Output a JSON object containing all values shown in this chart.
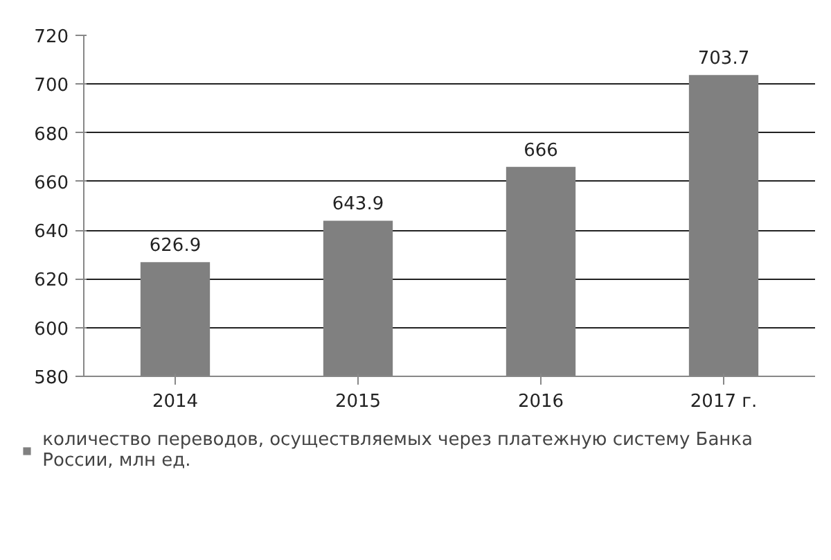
{
  "chart_data": {
    "type": "bar",
    "categories": [
      "2014",
      "2015",
      "2016",
      "2017 г."
    ],
    "series": [
      {
        "name": "количество переводов, осуществляемых через платежную систему Банка России, млн ед.",
        "color": "#808080",
        "values": [
          626.9,
          643.9,
          666,
          703.7
        ]
      }
    ],
    "ylim": [
      580,
      720
    ],
    "yticks": [
      580,
      600,
      620,
      640,
      660,
      680,
      700,
      720
    ],
    "grid": "y",
    "legend": "bottom",
    "data_labels": true
  }
}
